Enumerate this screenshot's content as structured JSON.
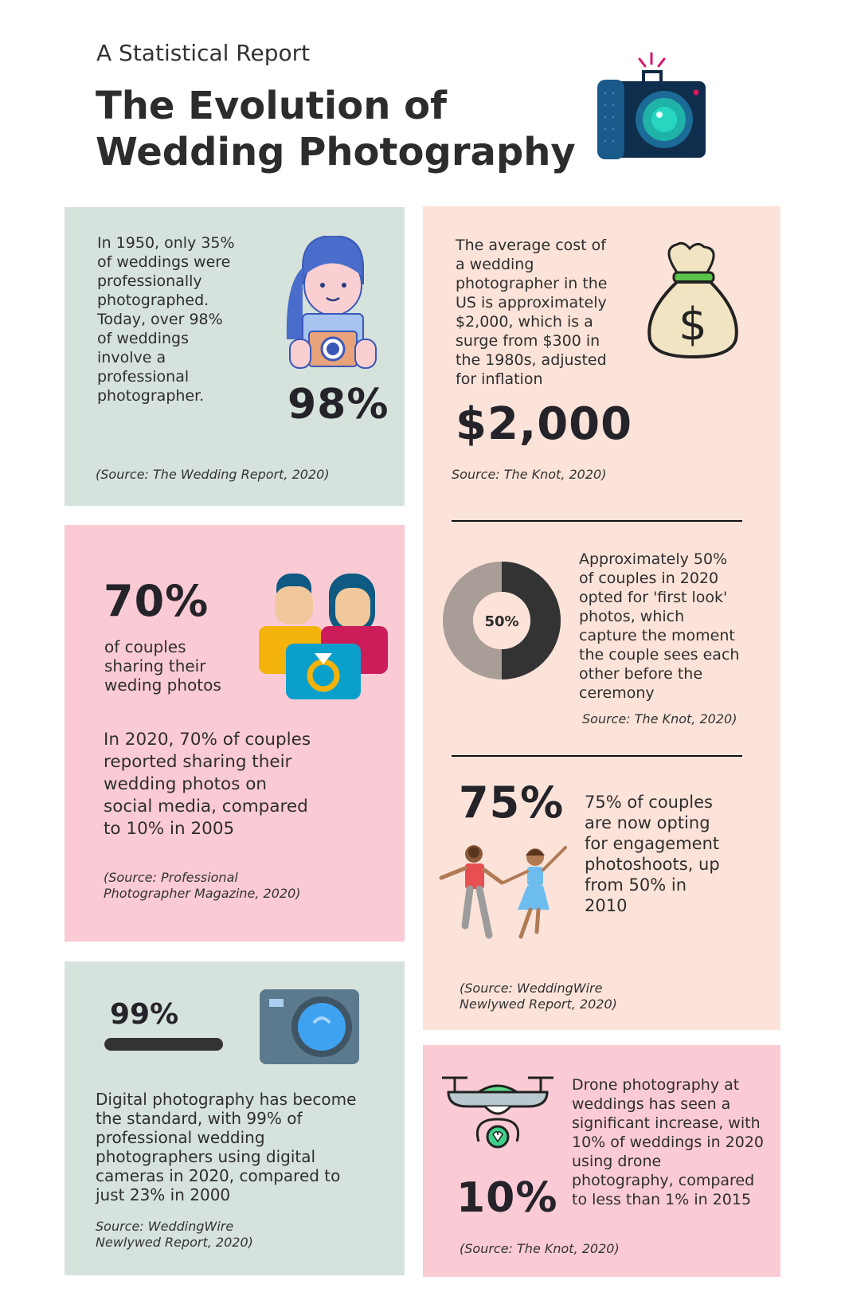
{
  "header": {
    "subtitle": "A Statistical Report",
    "title_line1": "The Evolution of",
    "title_line2": "Wedding Photography",
    "icon": "camera-icon"
  },
  "colors": {
    "green_panel": "#d6e2dc",
    "peach_panel": "#fce3d9",
    "pink_panel": "#fbcbd5",
    "text": "#25232a"
  },
  "cards": {
    "professional": {
      "text": "In 1950, only 35% of weddings were professionally photographed. Today, over 98% of weddings involve a professional photographer.",
      "stat": "98%",
      "source": "(Source: The Wedding Report, 2020)",
      "icon": "photographer-woman-icon"
    },
    "cost": {
      "text": "The average cost of a wedding photographer in the US is approximately $2,000, which is a surge from $300 in the 1980s, adjusted for inflation",
      "stat": "$2,000",
      "source": "Source: The Knot, 2020)",
      "icon": "money-bag-icon"
    },
    "first_look": {
      "donut_label": "50%",
      "value_percent": 50,
      "text": "Approximately 50% of couples in 2020 opted for 'first look' photos, which capture the moment the couple sees each other before the ceremony",
      "source": "Source: The Knot, 2020)"
    },
    "engagement": {
      "stat": "75%",
      "text": "75% of couples are now opting for engagement photoshoots, up from 50% in 2010",
      "source": "(Source: WeddingWire Newlywed Report, 2020)",
      "icon": "dancing-couple-icon"
    },
    "sharing": {
      "stat": "70%",
      "caption": "of couples sharing their weding photos",
      "text": "In 2020, 70% of couples reported sharing their wedding photos on social media, compared to 10% in 2005",
      "source": "(Source: Professional Photographer Magazine, 2020)",
      "icon": "couple-ring-icon"
    },
    "digital": {
      "stat": "99%",
      "progress_percent": 99,
      "text": "Digital photography has become the standard, with 99% of professional wedding photographers using digital cameras in 2020, compared to just 23% in 2000",
      "source": "Source: WeddingWire Newlywed Report, 2020)",
      "icon": "digital-camera-icon"
    },
    "drone": {
      "stat": "10%",
      "text": "Drone photography at weddings has seen a significant increase, with 10% of weddings in 2020 using drone photography, compared to less than 1% in 2015",
      "source": "(Source: The Knot, 2020)",
      "icon": "drone-icon"
    }
  }
}
